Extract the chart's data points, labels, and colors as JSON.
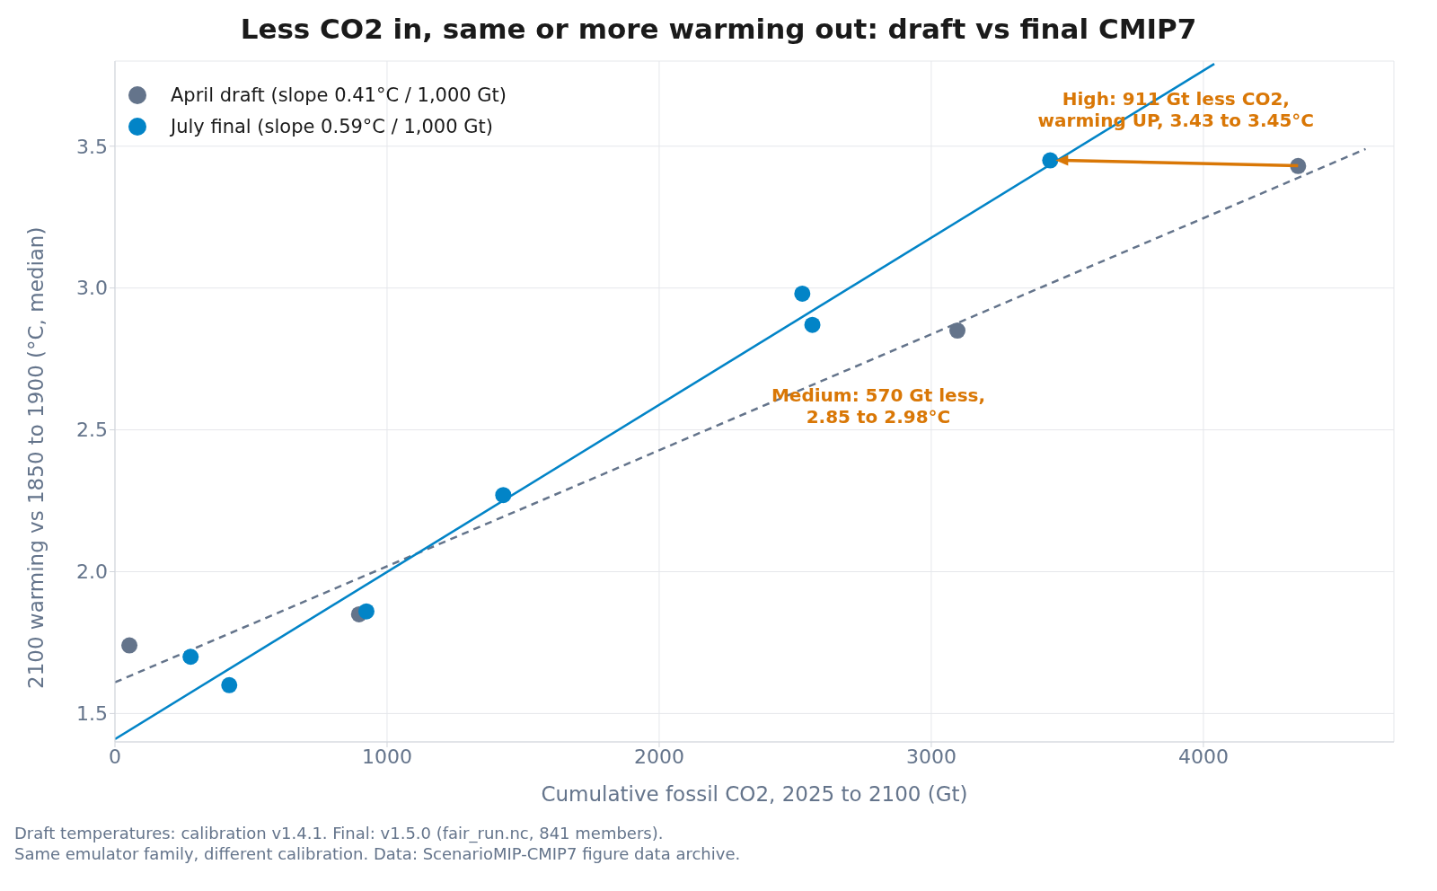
{
  "chart_data": {
    "type": "scatter",
    "title": "Less CO2 in, same or more warming out: draft vs final CMIP7",
    "xlabel": "Cumulative fossil CO2, 2025 to 2100 (Gt)",
    "ylabel": "2100 warming vs 1850 to 1900 (°C, median)",
    "series": [
      {
        "name": "April draft (slope 0.41°C / 1,000 Gt)",
        "color": "#64748b",
        "marker": "circle",
        "x": [
          53,
          897,
          3096,
          4348
        ],
        "values": [
          1.74,
          1.85,
          2.85,
          3.43
        ]
      },
      {
        "name": "July final (slope 0.59°C / 1,000 Gt)",
        "color": "#0284c7",
        "marker": "circle",
        "x": [
          278,
          420,
          924,
          1427,
          2526,
          2563,
          3437
        ],
        "values": [
          1.7,
          1.6,
          1.86,
          2.27,
          2.98,
          2.87,
          3.45
        ]
      },
      {
        "type": "line",
        "color": "#64748b",
        "marker": "none",
        "line_style": "dashed",
        "x": [
          0,
          4596
        ],
        "values": [
          1.61,
          3.49
        ]
      },
      {
        "type": "line",
        "color": "#0284c7",
        "marker": "none",
        "line_style": "solid",
        "x": [
          0,
          4040
        ],
        "values": [
          1.41,
          3.79
        ]
      }
    ],
    "xlim": [
      0,
      4700
    ],
    "ylim": [
      1.4,
      3.8
    ],
    "xticks": [
      0,
      1000,
      2000,
      3000,
      4000
    ],
    "yticks": [
      1.5,
      {
        "value": 2,
        "label": "2.0"
      },
      2.5,
      {
        "value": 3,
        "label": "3.0"
      },
      3.5
    ],
    "grid": true,
    "legend": "top left",
    "annotations": [
      {
        "text": "High: 911 Gt less CO2,\nwarming UP, 3.43 to 3.45°C",
        "x": 3437,
        "y": 3.45
      },
      "Medium: 570 Gt less,\n2.85 to 2.98°C",
      "Draft temperatures: calibration v1.4.1. Final: v1.5.0 (fair_run.nc, 841 members).\nSame emulator family, different calibration. Data: ScenarioMIP-CMIP7 figure data archive."
    ]
  }
}
